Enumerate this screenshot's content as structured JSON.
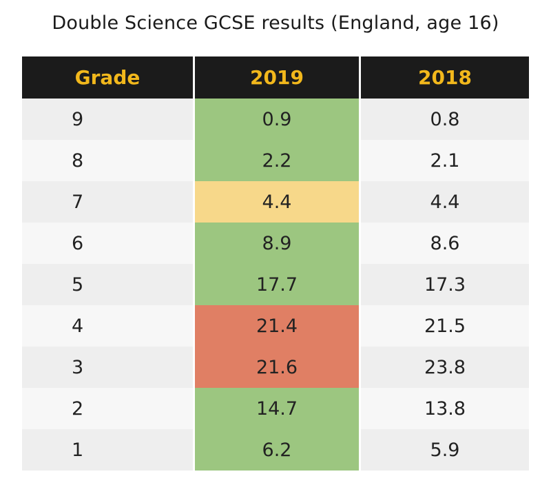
{
  "title": "Double Science GCSE results (England, age 16)",
  "colors": {
    "header_bg": "#1b1b1b",
    "header_text": "#f2b81c",
    "green": "#9cc680",
    "amber": "#f7d88a",
    "red": "#e07f64",
    "row_odd": "#eeeeee",
    "row_even": "#f7f7f7"
  },
  "chart_data": {
    "type": "table",
    "columns": [
      "Grade",
      "2019",
      "2018"
    ],
    "rows": [
      {
        "grade": "9",
        "y2019": "0.9",
        "y2018": "0.8",
        "highlight": "green"
      },
      {
        "grade": "8",
        "y2019": "2.2",
        "y2018": "2.1",
        "highlight": "green"
      },
      {
        "grade": "7",
        "y2019": "4.4",
        "y2018": "4.4",
        "highlight": "amber"
      },
      {
        "grade": "6",
        "y2019": "8.9",
        "y2018": "8.6",
        "highlight": "green"
      },
      {
        "grade": "5",
        "y2019": "17.7",
        "y2018": "17.3",
        "highlight": "green"
      },
      {
        "grade": "4",
        "y2019": "21.4",
        "y2018": "21.5",
        "highlight": "red"
      },
      {
        "grade": "3",
        "y2019": "21.6",
        "y2018": "23.8",
        "highlight": "red"
      },
      {
        "grade": "2",
        "y2019": "14.7",
        "y2018": "13.8",
        "highlight": "green"
      },
      {
        "grade": "1",
        "y2019": "6.2",
        "y2018": "5.9",
        "highlight": "green"
      }
    ]
  }
}
